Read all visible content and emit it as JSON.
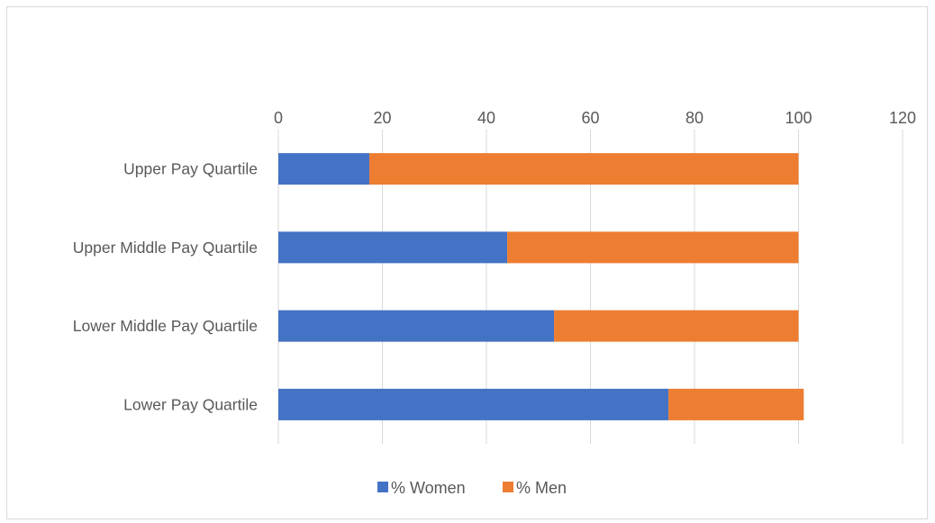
{
  "chart_data": {
    "type": "bar",
    "orientation": "horizontal",
    "stacked": true,
    "title": "",
    "xlabel": "",
    "ylabel": "",
    "xlim": [
      0,
      120
    ],
    "x_ticks": [
      0,
      20,
      40,
      60,
      80,
      100,
      120
    ],
    "x_axis_position": "top",
    "grid": true,
    "legend_position": "bottom",
    "categories": [
      "Upper Pay Quartile",
      "Upper Middle Pay Quartile",
      "Lower Middle Pay Quartile",
      "Lower Pay Quartile"
    ],
    "series": [
      {
        "name": "% Women",
        "color": "#4472c4",
        "values": [
          17.5,
          44,
          53,
          75
        ]
      },
      {
        "name": "% Men",
        "color": "#ed7d31",
        "values": [
          82.5,
          56,
          47,
          26
        ]
      }
    ]
  }
}
